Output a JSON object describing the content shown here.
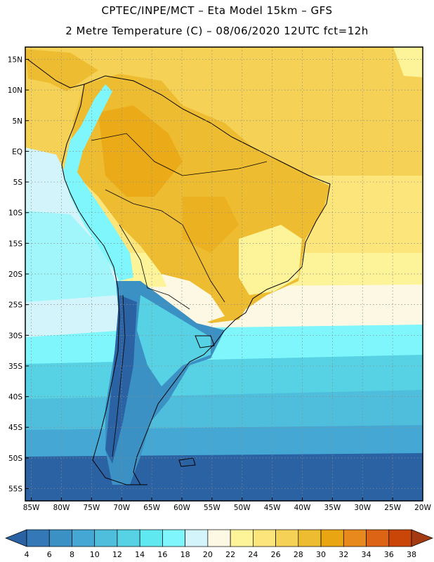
{
  "title": {
    "line1": "CPTEC/INPE/MCT –  Eta Model 15km – GFS",
    "line2": "2 Metre Temperature (C) – 08/06/2020 12UTC fct=12h"
  },
  "map": {
    "lon_range": [
      -86,
      -20
    ],
    "lat_range": [
      -57,
      17
    ],
    "lat_ticks": [
      {
        "value": 15,
        "label": "15N"
      },
      {
        "value": 10,
        "label": "10N"
      },
      {
        "value": 5,
        "label": "5N"
      },
      {
        "value": 0,
        "label": "EQ"
      },
      {
        "value": -5,
        "label": "5S"
      },
      {
        "value": -10,
        "label": "10S"
      },
      {
        "value": -15,
        "label": "15S"
      },
      {
        "value": -20,
        "label": "20S"
      },
      {
        "value": -25,
        "label": "25S"
      },
      {
        "value": -30,
        "label": "30S"
      },
      {
        "value": -35,
        "label": "35S"
      },
      {
        "value": -40,
        "label": "40S"
      },
      {
        "value": -45,
        "label": "45S"
      },
      {
        "value": -50,
        "label": "50S"
      },
      {
        "value": -55,
        "label": "55S"
      }
    ],
    "lon_ticks": [
      {
        "value": -85,
        "label": "85W"
      },
      {
        "value": -80,
        "label": "80W"
      },
      {
        "value": -75,
        "label": "75W"
      },
      {
        "value": -70,
        "label": "70W"
      },
      {
        "value": -65,
        "label": "65W"
      },
      {
        "value": -60,
        "label": "60W"
      },
      {
        "value": -55,
        "label": "55W"
      },
      {
        "value": -50,
        "label": "50W"
      },
      {
        "value": -45,
        "label": "45W"
      },
      {
        "value": -40,
        "label": "40W"
      },
      {
        "value": -35,
        "label": "35W"
      },
      {
        "value": -30,
        "label": "30W"
      },
      {
        "value": -25,
        "label": "25W"
      },
      {
        "value": -20,
        "label": "20W"
      }
    ]
  },
  "colorbar": {
    "labels": [
      "4",
      "6",
      "8",
      "10",
      "12",
      "14",
      "16",
      "18",
      "20",
      "22",
      "24",
      "26",
      "28",
      "30",
      "32",
      "34",
      "36",
      "38"
    ],
    "colors": [
      "#2a62a3",
      "#3478b8",
      "#3b90c4",
      "#45a8d4",
      "#4fbedc",
      "#57d2e4",
      "#60e8f0",
      "#7ff6fb",
      "#d4f4fb",
      "#fdf8e4",
      "#fdf49a",
      "#fce57a",
      "#f5d256",
      "#eebc30",
      "#eaa512",
      "#e7891c",
      "#dd6414",
      "#c94608",
      "#a53a12"
    ]
  }
}
